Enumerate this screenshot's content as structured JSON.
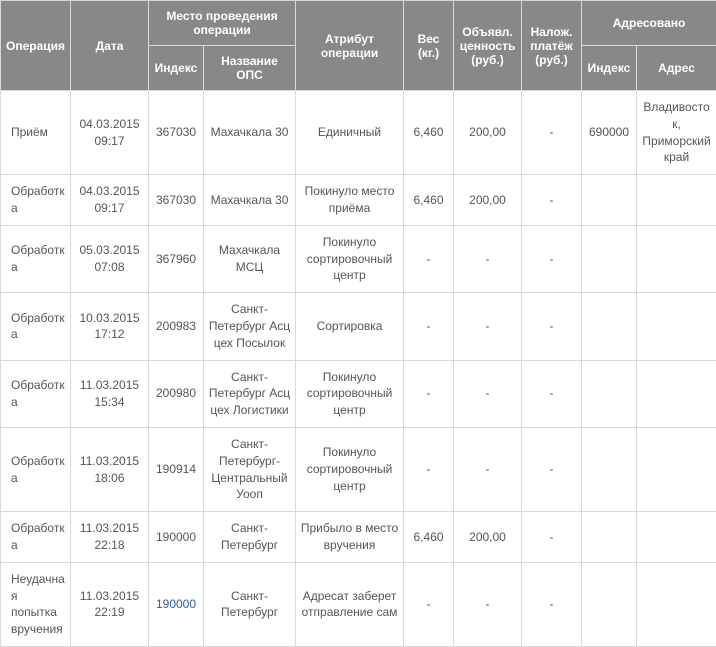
{
  "headers": {
    "top": {
      "operation": "Операция",
      "date": "Дата",
      "location": "Место проведения операции",
      "attribute": "Атрибут операции",
      "weight": "Вес (кг.)",
      "declared_value": "Объявл. ценность (руб.)",
      "cod": "Налож. платёж (руб.)",
      "addressed": "Адресовано"
    },
    "sub": {
      "index": "Индекс",
      "ops_name": "Название ОПС",
      "addr_index": "Индекс",
      "address": "Адрес"
    }
  },
  "rows": [
    {
      "operation": "Приём",
      "date": "04.03.2015 09:17",
      "index": "367030",
      "ops_name": "Махачкала 30",
      "attribute": "Единичный",
      "weight": "6,460",
      "declared_value": "200,00",
      "cod": "-",
      "addr_index": "690000",
      "address": "Владивосток, Приморский край"
    },
    {
      "operation": "Обработка",
      "date": "04.03.2015 09:17",
      "index": "367030",
      "ops_name": "Махачкала 30",
      "attribute": "Покинуло место приёма",
      "weight": "6,460",
      "declared_value": "200,00",
      "cod": "-",
      "addr_index": "",
      "address": ""
    },
    {
      "operation": "Обработка",
      "date": "05.03.2015 07:08",
      "index": "367960",
      "ops_name": "Махачкала МСЦ",
      "attribute": "Покинуло сортировочный центр",
      "weight": "-",
      "declared_value": "-",
      "cod": "-",
      "addr_index": "",
      "address": ""
    },
    {
      "operation": "Обработка",
      "date": "10.03.2015 17:12",
      "index": "200983",
      "ops_name": "Санкт-Петербург Асц цех Посылок",
      "attribute": "Сортировка",
      "weight": "-",
      "declared_value": "-",
      "cod": "-",
      "addr_index": "",
      "address": ""
    },
    {
      "operation": "Обработка",
      "date": "11.03.2015 15:34",
      "index": "200980",
      "ops_name": "Санкт-Петербург Асц цех Логистики",
      "attribute": "Покинуло сортировочный центр",
      "weight": "-",
      "declared_value": "-",
      "cod": "-",
      "addr_index": "",
      "address": ""
    },
    {
      "operation": "Обработка",
      "date": "11.03.2015 18:06",
      "index": "190914",
      "ops_name": "Санкт-Петербург-Центральный Уооп",
      "attribute": "Покинуло сортировочный центр",
      "weight": "-",
      "declared_value": "-",
      "cod": "-",
      "addr_index": "",
      "address": ""
    },
    {
      "operation": "Обработка",
      "date": "11.03.2015 22:18",
      "index": "190000",
      "ops_name": "Санкт-Петербург",
      "attribute": "Прибыло в место вручения",
      "weight": "6,460",
      "declared_value": "200,00",
      "cod": "-",
      "addr_index": "",
      "address": ""
    },
    {
      "operation": "Неудачная попытка вручения",
      "date": "11.03.2015 22:19",
      "index": "190000",
      "index_link": true,
      "ops_name": "Санкт-Петербург",
      "attribute": "Адресат заберет отправление сам",
      "weight": "-",
      "declared_value": "-",
      "cod": "-",
      "addr_index": "",
      "address": ""
    }
  ]
}
